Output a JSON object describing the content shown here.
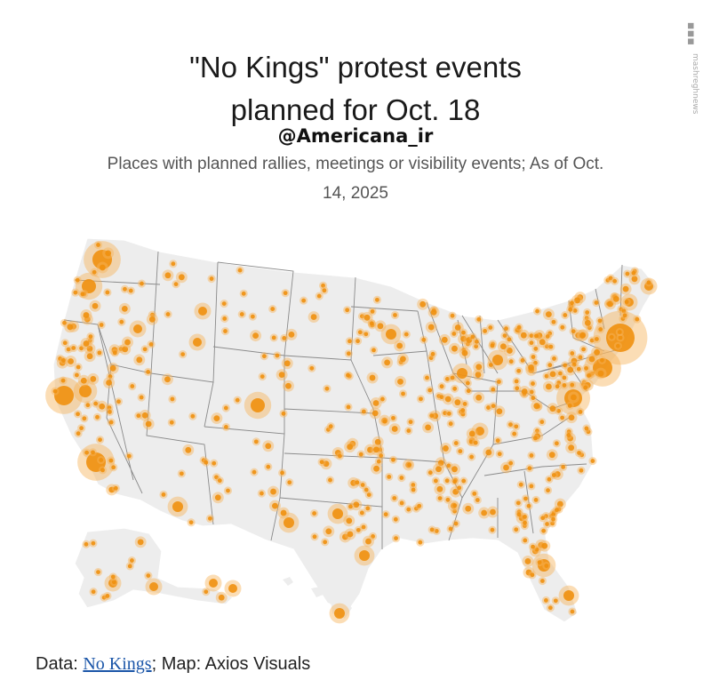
{
  "title_line1": "\"No Kings\" protest events",
  "title_line2": "planned for Oct. 18",
  "handle": "@Americana_ir",
  "subtitle_line1": "Places with planned rallies, meetings or visibility events; As of Oct.",
  "subtitle_line2": "14, 2025",
  "source": {
    "prefix": "Data: ",
    "link": "No Kings",
    "suffix": "; Map: Axios Visuals"
  },
  "watermark": "mashreghnews.ir",
  "colors": {
    "land": "#ededed",
    "border": "#ffffff",
    "dot": "#f0900e",
    "halo": "#f7b45a"
  }
}
